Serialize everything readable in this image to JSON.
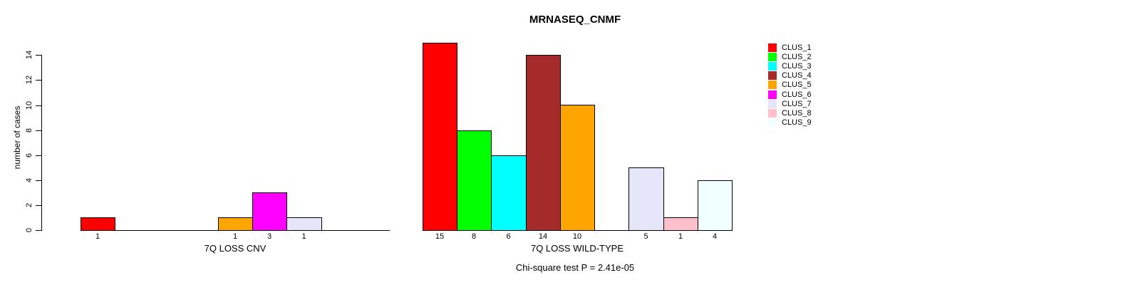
{
  "chart_data": {
    "type": "bar",
    "title": "MRNASEQ_CNMF",
    "ylabel": "number of cases",
    "xlabel": "",
    "annotation": "Chi-square test P = 2.41e-05",
    "categories": [
      "CLUS_1",
      "CLUS_2",
      "CLUS_3",
      "CLUS_4",
      "CLUS_5",
      "CLUS_6",
      "CLUS_7",
      "CLUS_8",
      "CLUS_9"
    ],
    "colors": [
      "#FF0000",
      "#00FF00",
      "#00FFFF",
      "#A52A2A",
      "#FFA500",
      "#FF00FF",
      "#E6E6FA",
      "#FFC0CB",
      "#F0FFFF"
    ],
    "groups": [
      {
        "label": "7Q LOSS CNV",
        "values": [
          1,
          0,
          0,
          0,
          1,
          3,
          1,
          0,
          0
        ],
        "bar_labels": [
          "1",
          "",
          "",
          "",
          "1",
          "3",
          "1",
          "",
          ""
        ]
      },
      {
        "label": "7Q LOSS WILD-TYPE",
        "values": [
          15,
          8,
          6,
          14,
          10,
          0,
          5,
          1,
          4
        ],
        "bar_labels": [
          "15",
          "8",
          "6",
          "14",
          "10",
          "",
          "5",
          "1",
          "4"
        ]
      }
    ],
    "y_axis": {
      "ticks": [
        0,
        2,
        4,
        6,
        8,
        10,
        12,
        14
      ],
      "range": [
        0,
        14
      ]
    },
    "legend": {
      "position": "right",
      "entries": [
        "CLUS_1",
        "CLUS_2",
        "CLUS_3",
        "CLUS_4",
        "CLUS_5",
        "CLUS_6",
        "CLUS_7",
        "CLUS_8",
        "CLUS_9"
      ]
    },
    "grid": false,
    "bar_border_color": "#000000"
  }
}
